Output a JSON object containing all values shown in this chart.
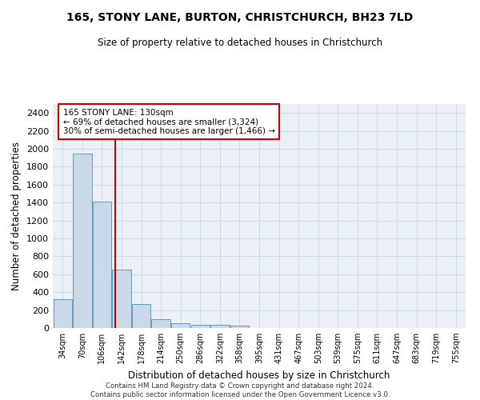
{
  "title": "165, STONY LANE, BURTON, CHRISTCHURCH, BH23 7LD",
  "subtitle": "Size of property relative to detached houses in Christchurch",
  "xlabel": "Distribution of detached houses by size in Christchurch",
  "ylabel": "Number of detached properties",
  "footer_line1": "Contains HM Land Registry data © Crown copyright and database right 2024.",
  "footer_line2": "Contains public sector information licensed under the Open Government Licence v3.0.",
  "bar_color": "#c9d9ea",
  "bar_edge_color": "#6699bb",
  "annotation_box_color": "#cc0000",
  "vline_color": "#cc0000",
  "grid_color": "#d0d8e0",
  "bg_color": "#eaf0f6",
  "annotation_line1": "165 STONY LANE: 130sqm",
  "annotation_line2": "← 69% of detached houses are smaller (3,324)",
  "annotation_line3": "30% of semi-detached houses are larger (1,466) →",
  "categories": [
    "34sqm",
    "70sqm",
    "106sqm",
    "142sqm",
    "178sqm",
    "214sqm",
    "250sqm",
    "286sqm",
    "322sqm",
    "358sqm",
    "395sqm",
    "431sqm",
    "467sqm",
    "503sqm",
    "539sqm",
    "575sqm",
    "611sqm",
    "647sqm",
    "683sqm",
    "719sqm",
    "755sqm"
  ],
  "bar_heights": [
    325,
    1950,
    1410,
    650,
    270,
    100,
    50,
    40,
    35,
    25,
    0,
    0,
    0,
    0,
    0,
    0,
    0,
    0,
    0,
    0,
    0
  ],
  "ylim": [
    0,
    2500
  ],
  "yticks": [
    0,
    200,
    400,
    600,
    800,
    1000,
    1200,
    1400,
    1600,
    1800,
    2000,
    2200,
    2400
  ],
  "vline_x_index": 2.694,
  "figsize": [
    6.0,
    5.0
  ],
  "dpi": 100
}
